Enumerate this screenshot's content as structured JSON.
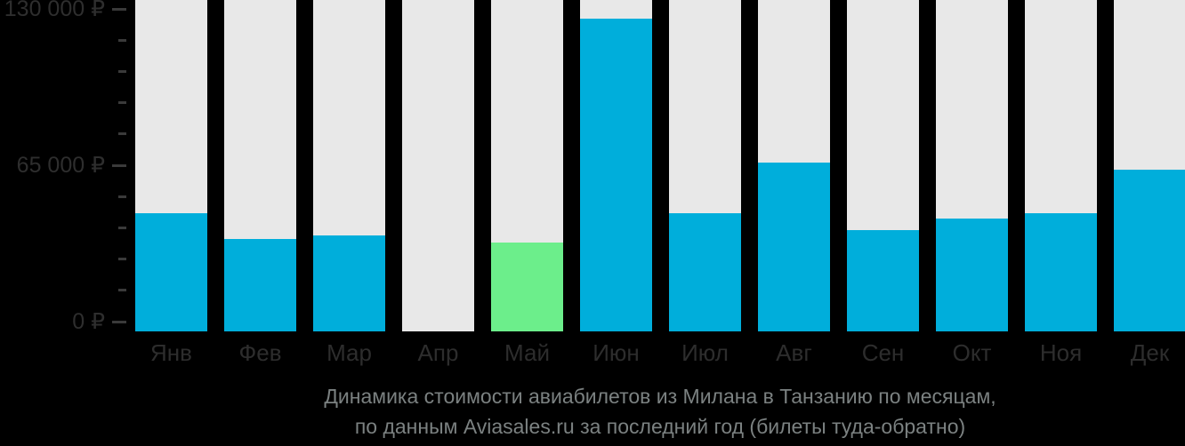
{
  "chart_data": {
    "type": "bar",
    "title": "Динамика стоимости авиабилетов из Милана в Танзанию по месяцам, по данным Aviasales.ru за последний год (билеты туда-обратно)",
    "categories": [
      "Янв",
      "Фев",
      "Мар",
      "Апр",
      "Май",
      "Июн",
      "Июл",
      "Авг",
      "Сен",
      "Окт",
      "Ноя",
      "Дек"
    ],
    "values": [
      45000,
      34500,
      36000,
      null,
      33000,
      126000,
      45000,
      66000,
      38000,
      43000,
      45000,
      63000
    ],
    "highlight_index": 4,
    "bar_color": "#00AEDB",
    "highlight_color": "#6CEE8B",
    "track_color": "#E8E8E8",
    "ylim": [
      0,
      130000
    ],
    "yticks": [
      {
        "value": 0,
        "label": "0 ₽"
      },
      {
        "value": 65000,
        "label": "65 000 ₽"
      },
      {
        "value": 130000,
        "label": "130 000 ₽"
      }
    ],
    "minor_tick_step": 13000,
    "grid": false,
    "legend": false
  },
  "caption": {
    "line1": "Динамика стоимости авиабилетов из Милана в Танзанию по месяцам,",
    "line2": "по данным Aviasales.ru за последний год (билеты туда-обратно)"
  }
}
